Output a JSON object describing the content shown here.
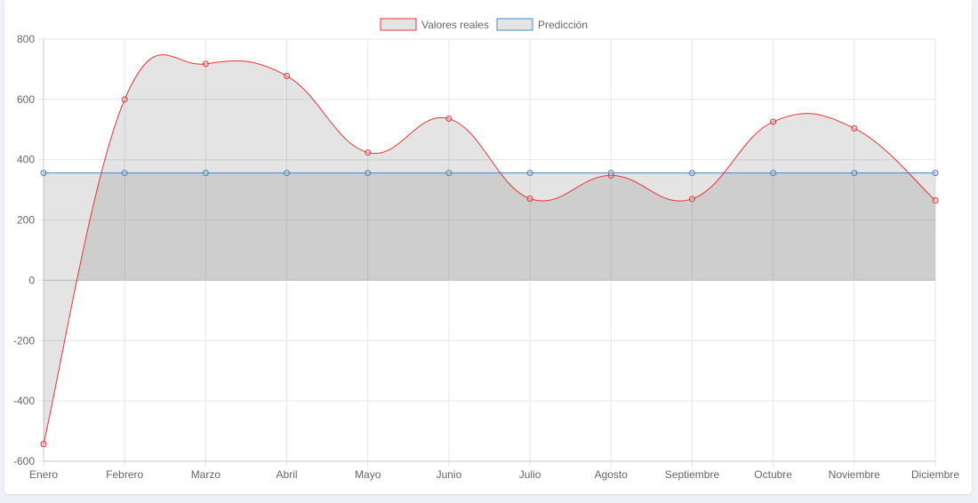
{
  "chart_data": {
    "type": "line",
    "categories": [
      "Enero",
      "Febrero",
      "Marzo",
      "Abril",
      "Mayo",
      "Junio",
      "Julio",
      "Agosto",
      "Septiembre",
      "Octubre",
      "Noviembre",
      "Diciembre"
    ],
    "series": [
      {
        "name": "Valores reales",
        "values": [
          -543,
          600,
          718,
          678,
          424,
          536,
          271,
          348,
          270,
          526,
          504,
          265
        ],
        "color": "#e8343a",
        "fill": "rgba(120,120,120,0.2)"
      },
      {
        "name": "Predicción",
        "values": [
          356,
          356,
          356,
          356,
          356,
          356,
          356,
          356,
          356,
          356,
          356,
          356
        ],
        "color": "#4a86c5",
        "fill": "rgba(120,120,120,0.2)"
      }
    ],
    "ylim": [
      -600,
      800
    ],
    "yticks": [
      800,
      600,
      400,
      200,
      0,
      -200,
      -400,
      -600
    ],
    "legend": "top-center",
    "grid": true,
    "title": "",
    "xlabel": "",
    "ylabel": ""
  }
}
